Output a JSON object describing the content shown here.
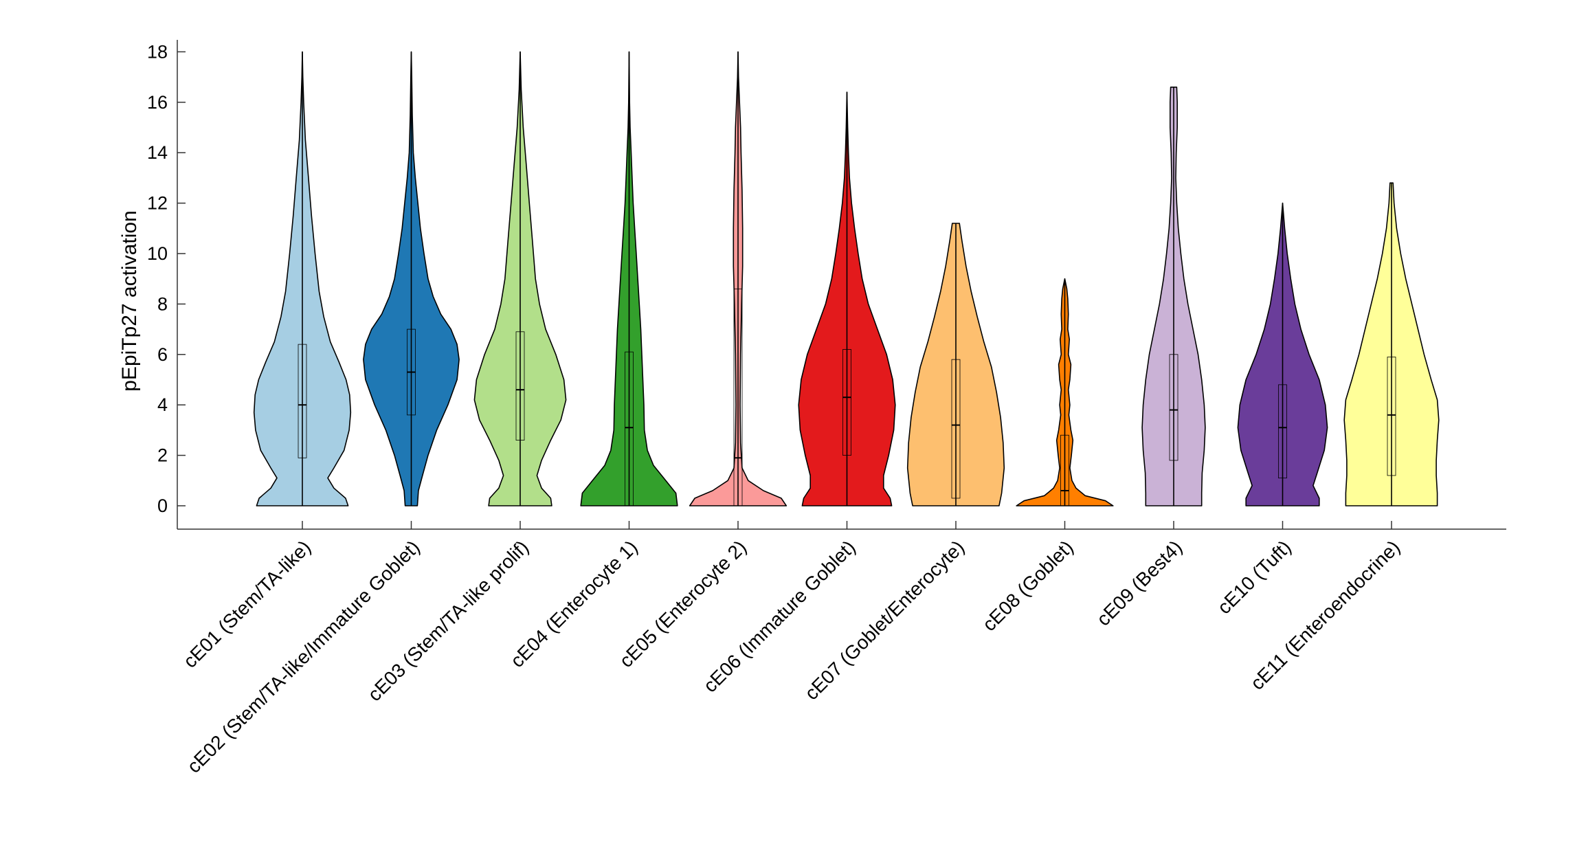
{
  "chart_data": {
    "type": "violin",
    "title": "",
    "xlabel": "",
    "ylabel": "pEpiTp27 activation",
    "ylim": [
      -0.9,
      18.7
    ],
    "yticks": [
      0,
      2,
      4,
      6,
      8,
      10,
      12,
      14,
      16,
      18
    ],
    "grid": false,
    "legend": "none",
    "categories": [
      "cE01 (Stem/TA-like)",
      "cE02 (Stem/TA-like/Immature Goblet)",
      "cE03 (Stem/TA-like prolif)",
      "cE04 (Enterocyte 1)",
      "cE05 (Enterocyte 2)",
      "cE06 (Immature Goblet)",
      "cE07 (Goblet/Enterocyte)",
      "cE08 (Goblet)",
      "cE09 (Best4)",
      "cE10 (Tuft)",
      "cE11 (Enteroendocrine)"
    ],
    "colors": [
      "#a6cee3",
      "#1f78b4",
      "#b2df8a",
      "#33a02c",
      "#fb9a99",
      "#e31a1c",
      "#fdbf6f",
      "#ff7f00",
      "#cab2d6",
      "#6a3d9a",
      "#ffff99"
    ],
    "series": [
      {
        "median": 4.0,
        "q1": 1.9,
        "q3": 6.4,
        "whisker_low": 0,
        "whisker_high": 18.0,
        "density": [
          [
            0,
            0.9
          ],
          [
            0.3,
            0.85
          ],
          [
            0.7,
            0.62
          ],
          [
            1.1,
            0.5
          ],
          [
            1.5,
            0.62
          ],
          [
            2.2,
            0.82
          ],
          [
            3.0,
            0.92
          ],
          [
            3.7,
            0.95
          ],
          [
            4.4,
            0.93
          ],
          [
            5.0,
            0.86
          ],
          [
            5.7,
            0.72
          ],
          [
            6.5,
            0.55
          ],
          [
            7.5,
            0.42
          ],
          [
            8.5,
            0.33
          ],
          [
            10,
            0.25
          ],
          [
            11.5,
            0.18
          ],
          [
            13,
            0.12
          ],
          [
            14.5,
            0.06
          ],
          [
            16,
            0.025
          ],
          [
            17,
            0.01
          ],
          [
            18,
            0
          ]
        ]
      },
      {
        "median": 5.3,
        "q1": 3.6,
        "q3": 7.0,
        "whisker_low": 0,
        "whisker_high": 18.0,
        "density": [
          [
            0,
            0.12
          ],
          [
            0.6,
            0.14
          ],
          [
            1.2,
            0.22
          ],
          [
            2,
            0.33
          ],
          [
            3,
            0.5
          ],
          [
            4,
            0.72
          ],
          [
            5,
            0.9
          ],
          [
            5.8,
            0.94
          ],
          [
            6.4,
            0.9
          ],
          [
            7,
            0.78
          ],
          [
            7.6,
            0.58
          ],
          [
            8.3,
            0.43
          ],
          [
            9,
            0.33
          ],
          [
            10,
            0.25
          ],
          [
            11,
            0.18
          ],
          [
            12,
            0.13
          ],
          [
            13,
            0.08
          ],
          [
            14,
            0.04
          ],
          [
            15.5,
            0.02
          ],
          [
            17,
            0.01
          ],
          [
            18,
            0
          ]
        ]
      },
      {
        "median": 4.6,
        "q1": 2.6,
        "q3": 6.9,
        "whisker_low": 0,
        "whisker_high": 18.0,
        "density": [
          [
            0,
            0.62
          ],
          [
            0.3,
            0.6
          ],
          [
            0.7,
            0.42
          ],
          [
            1.2,
            0.33
          ],
          [
            1.8,
            0.42
          ],
          [
            2.6,
            0.6
          ],
          [
            3.4,
            0.8
          ],
          [
            4.2,
            0.9
          ],
          [
            5,
            0.86
          ],
          [
            6,
            0.7
          ],
          [
            7,
            0.5
          ],
          [
            8,
            0.38
          ],
          [
            9,
            0.3
          ],
          [
            10.5,
            0.24
          ],
          [
            12,
            0.18
          ],
          [
            13.5,
            0.12
          ],
          [
            15,
            0.06
          ],
          [
            16.5,
            0.02
          ],
          [
            18,
            0
          ]
        ]
      },
      {
        "median": 3.1,
        "q1": 0,
        "q3": 6.1,
        "whisker_low": 0,
        "whisker_high": 18.0,
        "density": [
          [
            0,
            0.95
          ],
          [
            0.5,
            0.92
          ],
          [
            1.0,
            0.72
          ],
          [
            1.6,
            0.48
          ],
          [
            2.2,
            0.36
          ],
          [
            3,
            0.3
          ],
          [
            4,
            0.29
          ],
          [
            5,
            0.27
          ],
          [
            6,
            0.25
          ],
          [
            7,
            0.23
          ],
          [
            8,
            0.2
          ],
          [
            9,
            0.17
          ],
          [
            10,
            0.14
          ],
          [
            11,
            0.11
          ],
          [
            12,
            0.08
          ],
          [
            13,
            0.06
          ],
          [
            14,
            0.04
          ],
          [
            15,
            0.02
          ],
          [
            16,
            0.01
          ],
          [
            18,
            0
          ]
        ]
      },
      {
        "median": 1.9,
        "q1": 0,
        "q3": 8.6,
        "whisker_low": 0,
        "whisker_high": 18.0,
        "density": [
          [
            0,
            0.95
          ],
          [
            0.3,
            0.85
          ],
          [
            0.6,
            0.5
          ],
          [
            1.0,
            0.2
          ],
          [
            1.5,
            0.08
          ],
          [
            2.5,
            0.05
          ],
          [
            4,
            0.04
          ],
          [
            6,
            0.05
          ],
          [
            8,
            0.07
          ],
          [
            9.5,
            0.09
          ],
          [
            11,
            0.09
          ],
          [
            12.5,
            0.08
          ],
          [
            14,
            0.06
          ],
          [
            15,
            0.05
          ],
          [
            16,
            0.03
          ],
          [
            17,
            0.01
          ],
          [
            18,
            0
          ]
        ]
      },
      {
        "median": 4.3,
        "q1": 2.0,
        "q3": 6.2,
        "whisker_low": 0,
        "whisker_high": 16.4,
        "density": [
          [
            0,
            0.88
          ],
          [
            0.3,
            0.85
          ],
          [
            0.7,
            0.72
          ],
          [
            1.2,
            0.72
          ],
          [
            2,
            0.82
          ],
          [
            3,
            0.92
          ],
          [
            4,
            0.95
          ],
          [
            5,
            0.9
          ],
          [
            6,
            0.78
          ],
          [
            7,
            0.6
          ],
          [
            8,
            0.42
          ],
          [
            9,
            0.3
          ],
          [
            10,
            0.22
          ],
          [
            11,
            0.15
          ],
          [
            12,
            0.09
          ],
          [
            13,
            0.05
          ],
          [
            14,
            0.03
          ],
          [
            15,
            0.015
          ],
          [
            16.4,
            0
          ]
        ]
      },
      {
        "median": 3.2,
        "q1": 0.3,
        "q3": 5.8,
        "whisker_low": 0,
        "whisker_high": 11.2,
        "density": [
          [
            0,
            0.85
          ],
          [
            0.5,
            0.9
          ],
          [
            1.5,
            0.95
          ],
          [
            2.5,
            0.93
          ],
          [
            3.5,
            0.88
          ],
          [
            4.5,
            0.8
          ],
          [
            5.5,
            0.7
          ],
          [
            6.5,
            0.55
          ],
          [
            7.5,
            0.42
          ],
          [
            8.5,
            0.3
          ],
          [
            9.5,
            0.2
          ],
          [
            10.5,
            0.12
          ],
          [
            11.2,
            0.07
          ]
        ]
      },
      {
        "median": 0.6,
        "q1": 0,
        "q3": 2.8,
        "whisker_low": 0,
        "whisker_high": 9.0,
        "density": [
          [
            0,
            0.95
          ],
          [
            0.2,
            0.8
          ],
          [
            0.4,
            0.4
          ],
          [
            0.7,
            0.22
          ],
          [
            1,
            0.14
          ],
          [
            1.5,
            0.1
          ],
          [
            2,
            0.13
          ],
          [
            2.6,
            0.16
          ],
          [
            3,
            0.12
          ],
          [
            3.6,
            0.08
          ],
          [
            4,
            0.1
          ],
          [
            4.6,
            0.07
          ],
          [
            5,
            0.1
          ],
          [
            5.6,
            0.12
          ],
          [
            6,
            0.07
          ],
          [
            6.6,
            0.09
          ],
          [
            7,
            0.06
          ],
          [
            7.6,
            0.07
          ],
          [
            8.2,
            0.06
          ],
          [
            8.6,
            0.04
          ],
          [
            9.0,
            0
          ]
        ]
      },
      {
        "median": 3.8,
        "q1": 1.8,
        "q3": 6.0,
        "whisker_low": 0,
        "whisker_high": 16.6,
        "density": [
          [
            0,
            0.55
          ],
          [
            0.5,
            0.55
          ],
          [
            1.3,
            0.56
          ],
          [
            2.2,
            0.6
          ],
          [
            3.1,
            0.62
          ],
          [
            4,
            0.6
          ],
          [
            5,
            0.55
          ],
          [
            6,
            0.48
          ],
          [
            7,
            0.38
          ],
          [
            8,
            0.28
          ],
          [
            9,
            0.2
          ],
          [
            10,
            0.14
          ],
          [
            11,
            0.09
          ],
          [
            12,
            0.06
          ],
          [
            13,
            0.04
          ],
          [
            14,
            0.05
          ],
          [
            15,
            0.07
          ],
          [
            16,
            0.07
          ],
          [
            16.6,
            0.06
          ]
        ]
      },
      {
        "median": 3.1,
        "q1": 1.1,
        "q3": 4.8,
        "whisker_low": 0,
        "whisker_high": 12.0,
        "density": [
          [
            0,
            0.72
          ],
          [
            0.3,
            0.72
          ],
          [
            0.8,
            0.6
          ],
          [
            1.3,
            0.68
          ],
          [
            2.2,
            0.82
          ],
          [
            3.1,
            0.88
          ],
          [
            4,
            0.84
          ],
          [
            5,
            0.72
          ],
          [
            6,
            0.52
          ],
          [
            7,
            0.36
          ],
          [
            8,
            0.24
          ],
          [
            9,
            0.16
          ],
          [
            10,
            0.09
          ],
          [
            11,
            0.04
          ],
          [
            12,
            0
          ]
        ]
      },
      {
        "median": 3.6,
        "q1": 1.2,
        "q3": 5.9,
        "whisker_low": 0,
        "whisker_high": 12.8,
        "density": [
          [
            0,
            0.9
          ],
          [
            0.5,
            0.9
          ],
          [
            1.2,
            0.88
          ],
          [
            1.8,
            0.88
          ],
          [
            2.6,
            0.9
          ],
          [
            3.4,
            0.93
          ],
          [
            4.2,
            0.9
          ],
          [
            5,
            0.78
          ],
          [
            6,
            0.64
          ],
          [
            7,
            0.52
          ],
          [
            8,
            0.4
          ],
          [
            9,
            0.28
          ],
          [
            10,
            0.18
          ],
          [
            11,
            0.1
          ],
          [
            12,
            0.05
          ],
          [
            12.8,
            0.03
          ]
        ]
      }
    ]
  }
}
